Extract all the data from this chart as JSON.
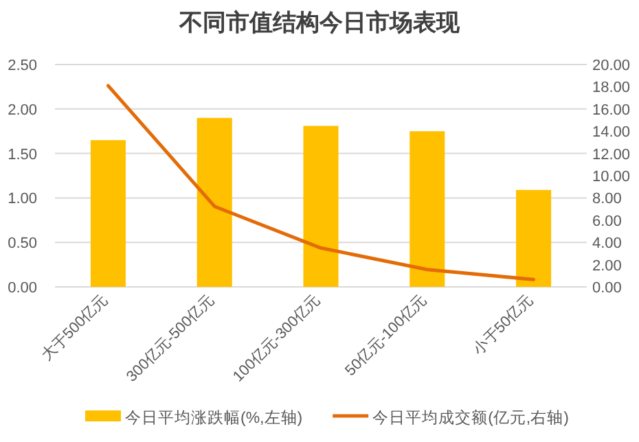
{
  "chart_data": {
    "type": "bar",
    "title": "不同市值结构今日市场表现",
    "categories": [
      "大于500亿元",
      "300亿元-500亿元",
      "100亿元-300亿元",
      "50亿元-100亿元",
      "小于50亿元"
    ],
    "series": [
      {
        "name": "今日平均涨跌幅(%,左轴)",
        "color": "#ffc000",
        "values": [
          1.65,
          1.9,
          1.81,
          1.75,
          1.09
        ]
      },
      {
        "name": "今日平均成交额(亿元,右轴)",
        "type": "line",
        "axis": "y2",
        "color": "#e36c09",
        "values": [
          18.1,
          7.24,
          3.5,
          1.56,
          0.66
        ]
      }
    ],
    "ylim": [
      0,
      2.5
    ],
    "yticks": [
      {
        "value": 0,
        "label": "0.00"
      },
      {
        "value": 0.5,
        "label": "0.50"
      },
      {
        "value": 1,
        "label": "1.00"
      },
      {
        "value": 1.5,
        "label": "1.50"
      },
      {
        "value": 2,
        "label": "2.00"
      },
      {
        "value": 2.5,
        "label": "2.50"
      }
    ],
    "y2lim": [
      0,
      20
    ],
    "y2ticks": [
      {
        "value": 0,
        "label": "0.00"
      },
      {
        "value": 2,
        "label": "2.00"
      },
      {
        "value": 4,
        "label": "4.00"
      },
      {
        "value": 6,
        "label": "6.00"
      },
      {
        "value": 8,
        "label": "8.00"
      },
      {
        "value": 10,
        "label": "10.00"
      },
      {
        "value": 12,
        "label": "12.00"
      },
      {
        "value": 14,
        "label": "14.00"
      },
      {
        "value": 16,
        "label": "16.00"
      },
      {
        "value": 18,
        "label": "18.00"
      },
      {
        "value": 20,
        "label": "20.00"
      }
    ],
    "grid": "y",
    "legend": "bottom",
    "marker": "none"
  }
}
